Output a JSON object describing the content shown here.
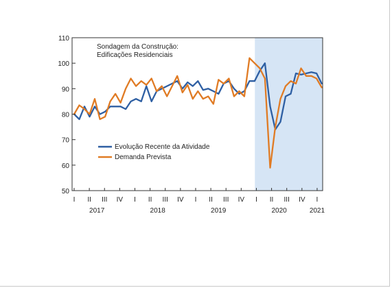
{
  "chart_data": {
    "type": "line",
    "title_lines": [
      "Sondagem da Construção:",
      "Edificações Residenciais"
    ],
    "ylim": [
      50,
      110
    ],
    "yticks": [
      50,
      60,
      70,
      80,
      90,
      100,
      110
    ],
    "grid": false,
    "legend_position": "lower-left",
    "quarter_labels": [
      "I",
      "II",
      "III",
      "IV",
      "I",
      "II",
      "III",
      "IV",
      "I",
      "II",
      "III",
      "IV",
      "I",
      "II",
      "III",
      "IV",
      "I"
    ],
    "year_labels": [
      {
        "label": "2017",
        "quarter_index": 1.5
      },
      {
        "label": "2018",
        "quarter_index": 5.5
      },
      {
        "label": "2019",
        "quarter_index": 9.5
      },
      {
        "label": "2020",
        "quarter_index": 13.5
      },
      {
        "label": "2021",
        "quarter_index": 16
      }
    ],
    "x_start": 0,
    "x_end": 16.3,
    "shaded_from": 11.9,
    "shade_color": "#d6e5f5",
    "series": [
      {
        "name": "Evolução Recente da Atividade",
        "color": "#2e5fa3",
        "values": [
          80,
          78,
          83,
          79,
          83,
          80,
          81,
          83,
          83,
          83,
          82,
          85,
          86,
          85,
          91,
          85,
          89,
          90,
          91,
          92,
          93,
          90,
          92.5,
          91,
          93,
          89.5,
          90,
          89,
          88,
          92,
          93,
          90,
          88,
          89,
          93,
          93,
          97,
          100,
          83,
          74,
          77,
          87,
          88,
          96,
          95.5,
          96,
          96.5,
          96,
          92
        ]
      },
      {
        "name": "Demanda Prevista",
        "color": "#e07b24",
        "values": [
          80,
          83.5,
          82,
          80,
          86,
          78,
          79,
          85,
          88,
          84.5,
          90,
          94,
          91,
          93,
          91.5,
          94,
          89,
          91,
          87,
          91,
          95,
          88.5,
          91.5,
          86,
          89,
          86,
          87,
          84,
          93.5,
          92,
          94,
          87,
          89,
          87,
          102,
          100,
          98,
          94,
          59,
          75,
          86,
          91,
          93,
          92,
          98,
          95,
          95,
          94,
          90.5
        ]
      }
    ]
  }
}
